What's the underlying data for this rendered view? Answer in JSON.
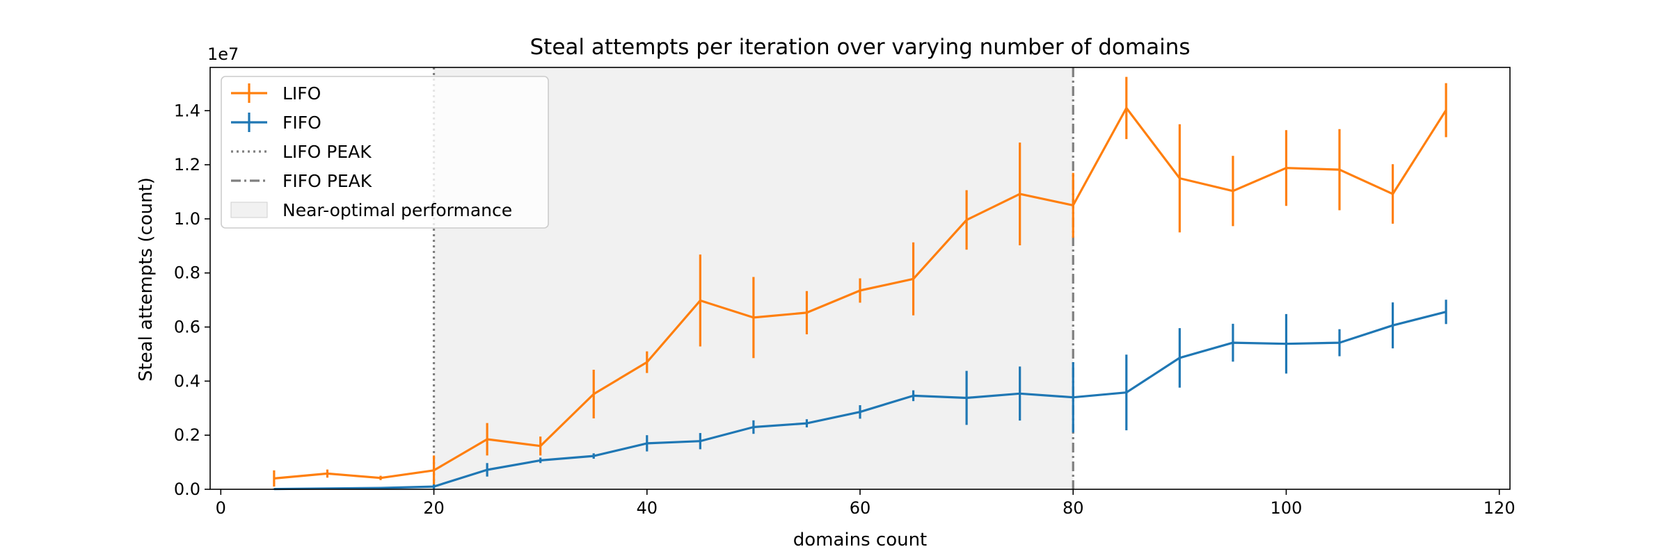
{
  "chart_data": {
    "type": "line",
    "title": "Steal attempts per iteration over varying number of domains",
    "xlabel": "domains count",
    "ylabel": "Steal attempts (count)",
    "y_offset_label": "1e7",
    "y_scale": 10000000,
    "xlim": [
      -1,
      121
    ],
    "ylim": [
      0,
      15600000
    ],
    "x_ticks": [
      0,
      20,
      40,
      60,
      80,
      100,
      120
    ],
    "x_tick_labels": [
      "0",
      "20",
      "40",
      "60",
      "80",
      "100",
      "120"
    ],
    "y_ticks": [
      0,
      2000000,
      4000000,
      6000000,
      8000000,
      10000000,
      12000000,
      14000000
    ],
    "y_tick_labels": [
      "0.0",
      "0.2",
      "0.4",
      "0.6",
      "0.8",
      "1.0",
      "1.2",
      "1.4"
    ],
    "grid": false,
    "legend_position": "top-left",
    "x": [
      5,
      10,
      15,
      20,
      25,
      30,
      35,
      40,
      45,
      50,
      55,
      60,
      65,
      70,
      75,
      80,
      85,
      90,
      95,
      100,
      105,
      110,
      115
    ],
    "series": [
      {
        "name": "LIFO",
        "color": "#ff7f0e",
        "values": [
          400000,
          580000,
          420000,
          700000,
          1850000,
          1600000,
          3520000,
          4700000,
          6980000,
          6350000,
          6530000,
          7350000,
          7780000,
          9960000,
          10920000,
          10500000,
          14100000,
          11500000,
          11030000,
          11880000,
          11820000,
          10920000,
          14020000
        ],
        "errors": [
          300000,
          150000,
          80000,
          550000,
          600000,
          350000,
          900000,
          400000,
          1700000,
          1500000,
          800000,
          450000,
          1350000,
          1100000,
          1900000,
          1200000,
          1150000,
          2000000,
          1300000,
          1400000,
          1500000,
          1100000,
          1000000
        ]
      },
      {
        "name": "FIFO",
        "color": "#1f77b4",
        "values": [
          10000,
          30000,
          50000,
          100000,
          720000,
          1070000,
          1230000,
          1700000,
          1780000,
          2300000,
          2440000,
          2860000,
          3460000,
          3380000,
          3540000,
          3400000,
          3580000,
          4860000,
          5420000,
          5380000,
          5420000,
          6060000,
          6560000
        ],
        "errors": [
          20000,
          30000,
          40000,
          80000,
          250000,
          100000,
          100000,
          300000,
          300000,
          250000,
          150000,
          250000,
          200000,
          1000000,
          1000000,
          1300000,
          1400000,
          1100000,
          700000,
          1100000,
          500000,
          850000,
          450000
        ]
      }
    ],
    "reference_lines": [
      {
        "name": "LIFO PEAK",
        "x": 20,
        "style": "dotted",
        "color": "#808080"
      },
      {
        "name": "FIFO PEAK",
        "x": 80,
        "style": "dashdot",
        "color": "#7f7f7f"
      }
    ],
    "shaded_region": {
      "name": "Near-optimal performance",
      "x_range": [
        20,
        80
      ],
      "color": "#d8d8d8"
    }
  }
}
